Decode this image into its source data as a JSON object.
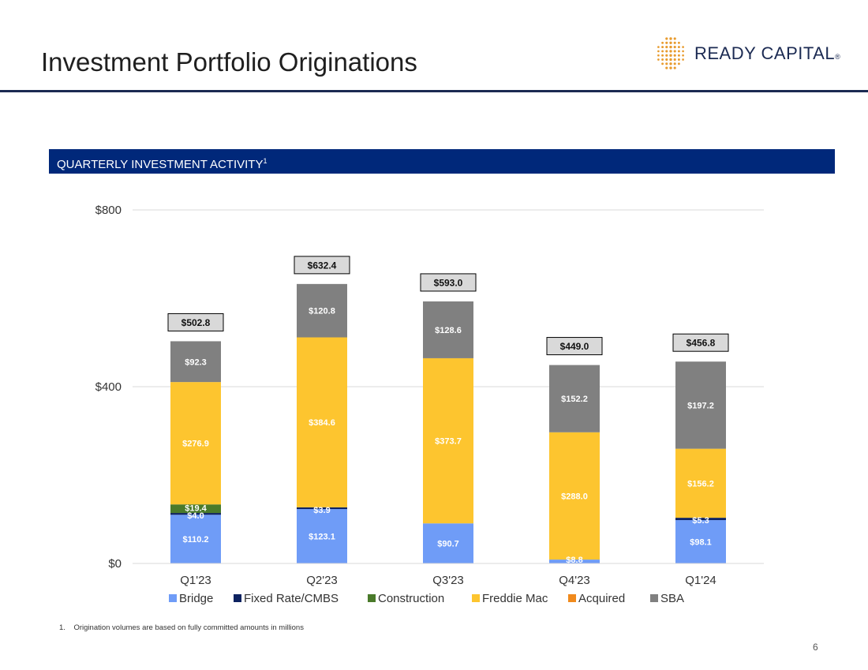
{
  "header": {
    "title": "Investment Portfolio Originations",
    "logo_text": "READY CAPITAL",
    "logo_mark": "®"
  },
  "section": {
    "label": "QUARTERLY INVESTMENT ACTIVITY",
    "footnote_ref": "1"
  },
  "footnote": "1.    Origination volumes are based on fully committed amounts in millions",
  "page_number": "6",
  "colors": {
    "brand_navy": "#1b2a52",
    "banner": "#00287a",
    "logo_orange": "#e89b2e"
  },
  "chart_data": {
    "type": "bar",
    "stacked": true,
    "title": "",
    "xlabel": "",
    "ylabel": "",
    "ylim": [
      0,
      800
    ],
    "y_ticks": [
      {
        "value": 0,
        "label": "$0"
      },
      {
        "value": 400,
        "label": "$400"
      },
      {
        "value": 800,
        "label": "$800"
      }
    ],
    "grid": true,
    "legend_position": "bottom",
    "categories": [
      "Q1'23",
      "Q2'23",
      "Q3'23",
      "Q4'23",
      "Q1'24"
    ],
    "totals": [
      502.8,
      632.4,
      593.0,
      449.0,
      456.8
    ],
    "total_labels": [
      "$502.8",
      "$632.4",
      "$593.0",
      "$449.0",
      "$456.8"
    ],
    "series": [
      {
        "name": "Bridge",
        "color": "#6f9cf7",
        "values": [
          110.2,
          123.1,
          90.7,
          8.8,
          98.1
        ],
        "labels": [
          "$110.2",
          "$123.1",
          "$90.7",
          "$8.8",
          "$98.1"
        ]
      },
      {
        "name": "Fixed Rate/CMBS",
        "color": "#0d2260",
        "values": [
          4.0,
          3.9,
          0,
          0,
          5.3
        ],
        "labels": [
          "$4.0",
          "$3.9",
          "",
          "",
          "$5.3"
        ]
      },
      {
        "name": "Construction",
        "color": "#4a7a2a",
        "values": [
          19.4,
          0,
          0,
          0,
          0
        ],
        "labels": [
          "$19.4",
          "",
          "",
          "",
          ""
        ]
      },
      {
        "name": "Freddie Mac",
        "color": "#fdc52f",
        "values": [
          276.9,
          384.6,
          373.7,
          288.0,
          156.2
        ],
        "labels": [
          "$276.9",
          "$384.6",
          "$373.7",
          "$288.0",
          "$156.2"
        ]
      },
      {
        "name": "Acquired",
        "color": "#f08a1c",
        "values": [
          0,
          0,
          0,
          0,
          0
        ],
        "labels": [
          "",
          "",
          "",
          "",
          ""
        ]
      },
      {
        "name": "SBA",
        "color": "#808080",
        "values": [
          92.3,
          120.8,
          128.6,
          152.2,
          197.2
        ],
        "labels": [
          "$92.3",
          "$120.8",
          "$128.6",
          "$152.2",
          "$197.2"
        ]
      }
    ]
  }
}
